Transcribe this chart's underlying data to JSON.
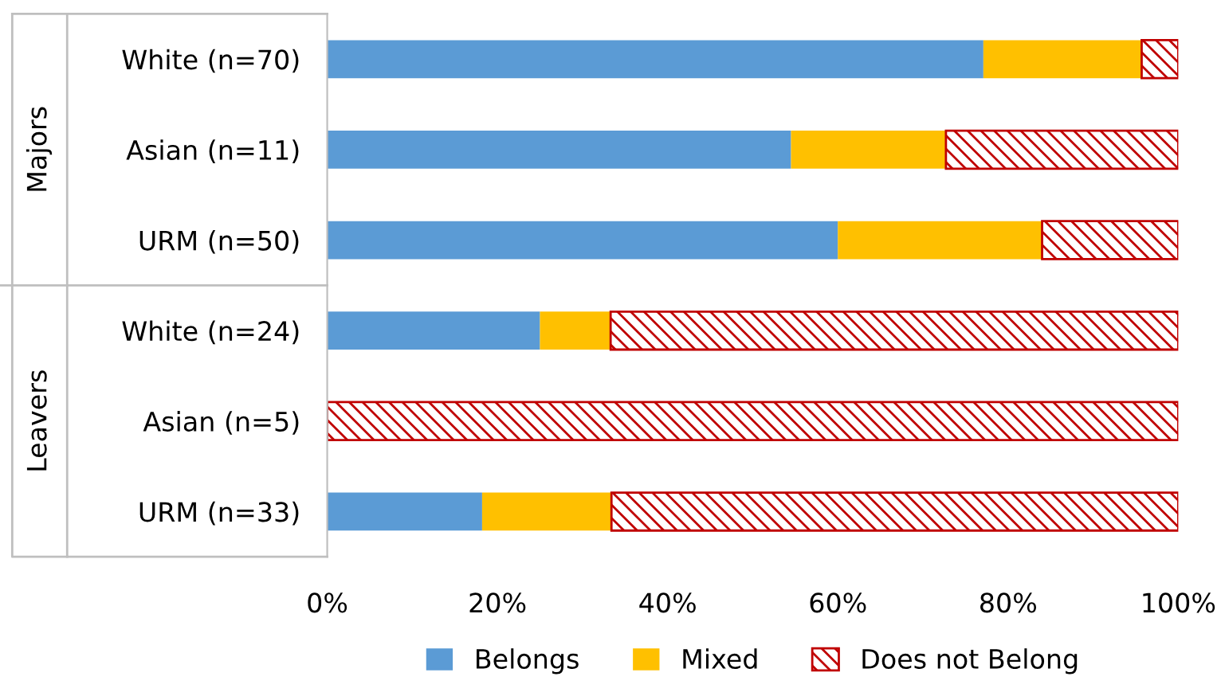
{
  "chart_data": {
    "type": "bar",
    "orientation": "horizontal",
    "stacked": true,
    "categories": [
      "White (n=70)",
      "Asian (n=11)",
      "URM (n=50)",
      "White (n=24)",
      "Asian (n=5)",
      "URM (n=33)"
    ],
    "series": [
      {
        "name": "Belongs",
        "color": "#5b9bd5",
        "values": [
          77.1,
          54.5,
          60,
          25,
          0,
          18.2
        ]
      },
      {
        "name": "Mixed",
        "color": "#ffc000",
        "values": [
          18.6,
          18.2,
          24,
          8.3,
          0,
          15.2
        ]
      },
      {
        "name": "Does not Belong",
        "color": "#c00000",
        "values": [
          4.3,
          27.3,
          16,
          66.7,
          100,
          66.6
        ]
      }
    ],
    "xlim": [
      0,
      100
    ],
    "xticks": [
      {
        "value": 0,
        "label": "0%"
      },
      {
        "value": 20,
        "label": "20%"
      },
      {
        "value": 40,
        "label": "40%"
      },
      {
        "value": 60,
        "label": "60%"
      },
      {
        "value": 80,
        "label": "80%"
      },
      {
        "value": 100,
        "label": "100%"
      }
    ],
    "annotations": [
      "Majors",
      "Leavers"
    ],
    "grid": false,
    "legend": "bottom"
  }
}
